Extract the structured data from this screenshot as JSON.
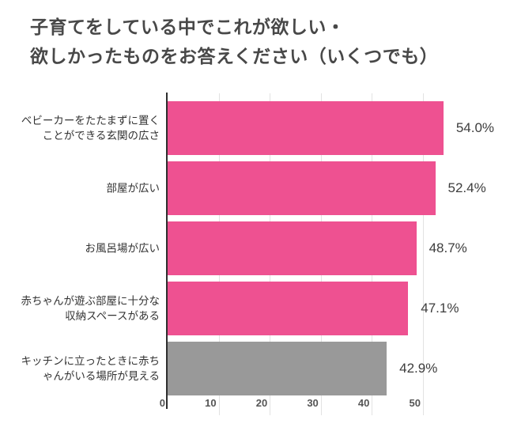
{
  "header": {
    "title_line1": "子育てをしている中でこれが欲しい・",
    "title_line2": "欲しかったものをお答えください（いくつでも）"
  },
  "chart_data": {
    "type": "bar",
    "orientation": "horizontal",
    "title": "子育てをしている中でこれが欲しい・欲しかったものをお答えください（いくつでも）",
    "categories": [
      "ベビーカーをたたまずに置くことができる玄関の広さ",
      "部屋が広い",
      "お風呂場が広い",
      "赤ちゃんが遊ぶ部屋に十分な収納スペースがある",
      "キッチンに立ったときに赤ちゃんがいる場所が見える"
    ],
    "category_lines": [
      [
        "ベビーカーをたたまずに置く",
        "ことができる玄関の広さ"
      ],
      [
        "部屋が広い"
      ],
      [
        "お風呂場が広い"
      ],
      [
        "赤ちゃんが遊ぶ部屋に十分な",
        "収納スペースがある"
      ],
      [
        "キッチンに立ったときに赤ち",
        "ゃんがいる場所が見える"
      ]
    ],
    "values": [
      54.0,
      52.4,
      48.7,
      47.1,
      42.9
    ],
    "value_labels": [
      "54.0%",
      "52.4%",
      "48.7%",
      "47.1%",
      "42.9%"
    ],
    "bar_colors": [
      "#ee5191",
      "#ee5191",
      "#ee5191",
      "#ee5191",
      "#999999"
    ],
    "x_ticks": [
      0,
      10,
      20,
      30,
      40,
      50
    ],
    "xlim": [
      0,
      66
    ],
    "xlabel": "",
    "ylabel": "",
    "grid": true,
    "legend_position": "none",
    "colors": {
      "bar_pink": "#ee5191",
      "bar_gray": "#999999",
      "axis_line": "#2e2e2e",
      "gridline": "#e2e2e2",
      "title_text": "#484848",
      "category_text": "#333333",
      "value_text": "#3d3d3d",
      "tick_text": "#555555",
      "background": "#ffffff"
    }
  }
}
